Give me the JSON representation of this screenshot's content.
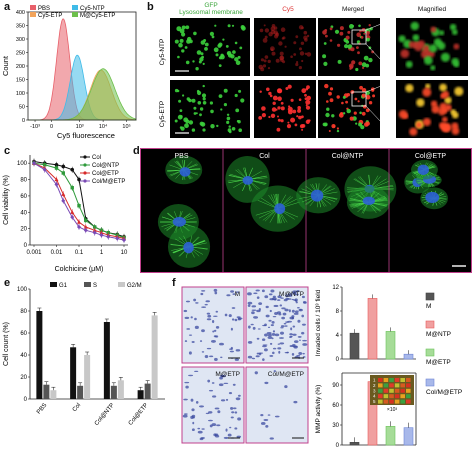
{
  "panels": {
    "a": "a",
    "b": "b",
    "c": "c",
    "d": "d",
    "e": "e",
    "f": "f"
  },
  "panel_a": {
    "legend": [
      "PBS",
      "Cy5-NTP",
      "Cy5-ETP",
      "M@Cy5-ETP"
    ],
    "colors": {
      "PBS": "#e8606a",
      "Cy5-NTP": "#3fbbe8",
      "Cy5-ETP": "#f2a35a",
      "M@Cy5-ETP": "#6dbf4b"
    },
    "xlabel": "Cy5 fluorescence",
    "ylabel": "Count",
    "yticks": [
      "0",
      "50",
      "100",
      "150",
      "200",
      "250",
      "300",
      "350",
      "400"
    ],
    "xticks": [
      "-10³",
      "0",
      "10³",
      "10⁴",
      "10⁵"
    ]
  },
  "panel_b": {
    "col_headers": [
      "GFP",
      "Lysosomal membrane",
      "Cy5",
      "Merged",
      "Magnified"
    ],
    "row_labels": [
      "Cy5-NTP",
      "Cy5-ETP"
    ]
  },
  "panel_c": {
    "xlabel": "Colchicine (μM)",
    "ylabel": "Cell viability (%)",
    "yticks": [
      "0",
      "20",
      "40",
      "60",
      "80",
      "100"
    ],
    "xticks": [
      "0.001",
      "0.01",
      "0.1",
      "1",
      "10"
    ],
    "legend": [
      "Col",
      "Col@NTP",
      "Col@ETP",
      "Col/M@ETP"
    ]
  },
  "panel_d": {
    "labels": [
      "PBS",
      "Col",
      "Col@NTP",
      "Col@ETP"
    ]
  },
  "panel_e": {
    "ylabel": "Cell count (%)",
    "yticks": [
      "0",
      "20",
      "40",
      "60",
      "80",
      "100"
    ],
    "categories": [
      "PBS",
      "Col",
      "Col@NTP",
      "Col@ETP"
    ],
    "legend": [
      "G1",
      "S",
      "G2/M"
    ]
  },
  "panel_f": {
    "image_labels": [
      "M",
      "M@NTP",
      "M@ETP",
      "Col/M@ETP"
    ],
    "top_ylabel": "Invaded cells / 10³ field",
    "top_yticks": [
      "0",
      "4",
      "8",
      "12"
    ],
    "bottom_ylabel": "MMP activity (%)",
    "bottom_yticks": [
      "0",
      "30",
      "60",
      "90"
    ],
    "legend": [
      "M",
      "M@NTP",
      "M@ETP",
      "Col/M@ETP"
    ],
    "inset_rows": [
      "1",
      "2",
      "3",
      "4",
      "5"
    ],
    "inset_x": "×10³"
  },
  "chart_data": [
    {
      "type": "area",
      "panel": "a",
      "xlabel": "Cy5 fluorescence",
      "ylabel": "Count",
      "ylim": [
        0,
        400
      ],
      "series": [
        {
          "name": "PBS",
          "peak_x_log": 2.3,
          "peak": 375
        },
        {
          "name": "Cy5-NTP",
          "peak_x_log": 2.9,
          "peak": 240
        },
        {
          "name": "Cy5-ETP",
          "peak_x_log": 3.9,
          "peak": 185
        },
        {
          "name": "M@Cy5-ETP",
          "peak_x_log": 4.0,
          "peak": 190
        }
      ]
    },
    {
      "type": "line",
      "panel": "c",
      "xlabel": "Colchicine (μM)",
      "ylabel": "Cell viability (%)",
      "x": [
        0.001,
        0.003,
        0.01,
        0.02,
        0.05,
        0.1,
        0.2,
        0.5,
        1,
        2,
        5,
        10
      ],
      "ylim": [
        0,
        110
      ],
      "series": [
        {
          "name": "Col",
          "color": "#111111",
          "values": [
            102,
            100,
            98,
            96,
            92,
            80,
            32,
            22,
            18,
            15,
            13,
            10
          ]
        },
        {
          "name": "Col@NTP",
          "color": "#2e9a3a",
          "values": [
            100,
            98,
            94,
            88,
            70,
            48,
            30,
            22,
            18,
            15,
            12,
            9
          ]
        },
        {
          "name": "Col@ETP",
          "color": "#d72a2a",
          "values": [
            100,
            94,
            80,
            62,
            40,
            28,
            22,
            18,
            15,
            12,
            10,
            8
          ]
        },
        {
          "name": "Col/M@ETP",
          "color": "#7a4ab5",
          "values": [
            100,
            92,
            74,
            54,
            34,
            22,
            18,
            15,
            12,
            10,
            8,
            6
          ]
        }
      ]
    },
    {
      "type": "bar",
      "panel": "e",
      "ylabel": "Cell count (%)",
      "categories": [
        "PBS",
        "Col",
        "Col@NTP",
        "Col@ETP"
      ],
      "ylim": [
        0,
        100
      ],
      "series": [
        {
          "name": "G1",
          "color": "#111111",
          "values": [
            80,
            47,
            70,
            8
          ]
        },
        {
          "name": "S",
          "color": "#555555",
          "values": [
            13,
            12,
            12,
            14
          ]
        },
        {
          "name": "G2/M",
          "color": "#c8c8c8",
          "values": [
            8,
            40,
            17,
            76
          ]
        }
      ]
    },
    {
      "type": "bar",
      "panel": "f-top",
      "ylabel": "Invaded cells / 10³ field",
      "categories": [
        "M",
        "M@NTP",
        "M@ETP",
        "Col/M@ETP"
      ],
      "ylim": [
        0,
        12
      ],
      "values": [
        4.3,
        10.1,
        4.6,
        0.8
      ]
    },
    {
      "type": "bar",
      "panel": "f-bottom",
      "ylabel": "MMP activity (%)",
      "categories": [
        "M",
        "M@NTP",
        "M@ETP",
        "Col/M@ETP"
      ],
      "ylim": [
        0,
        105
      ],
      "values": [
        4,
        95,
        28,
        26
      ]
    }
  ]
}
